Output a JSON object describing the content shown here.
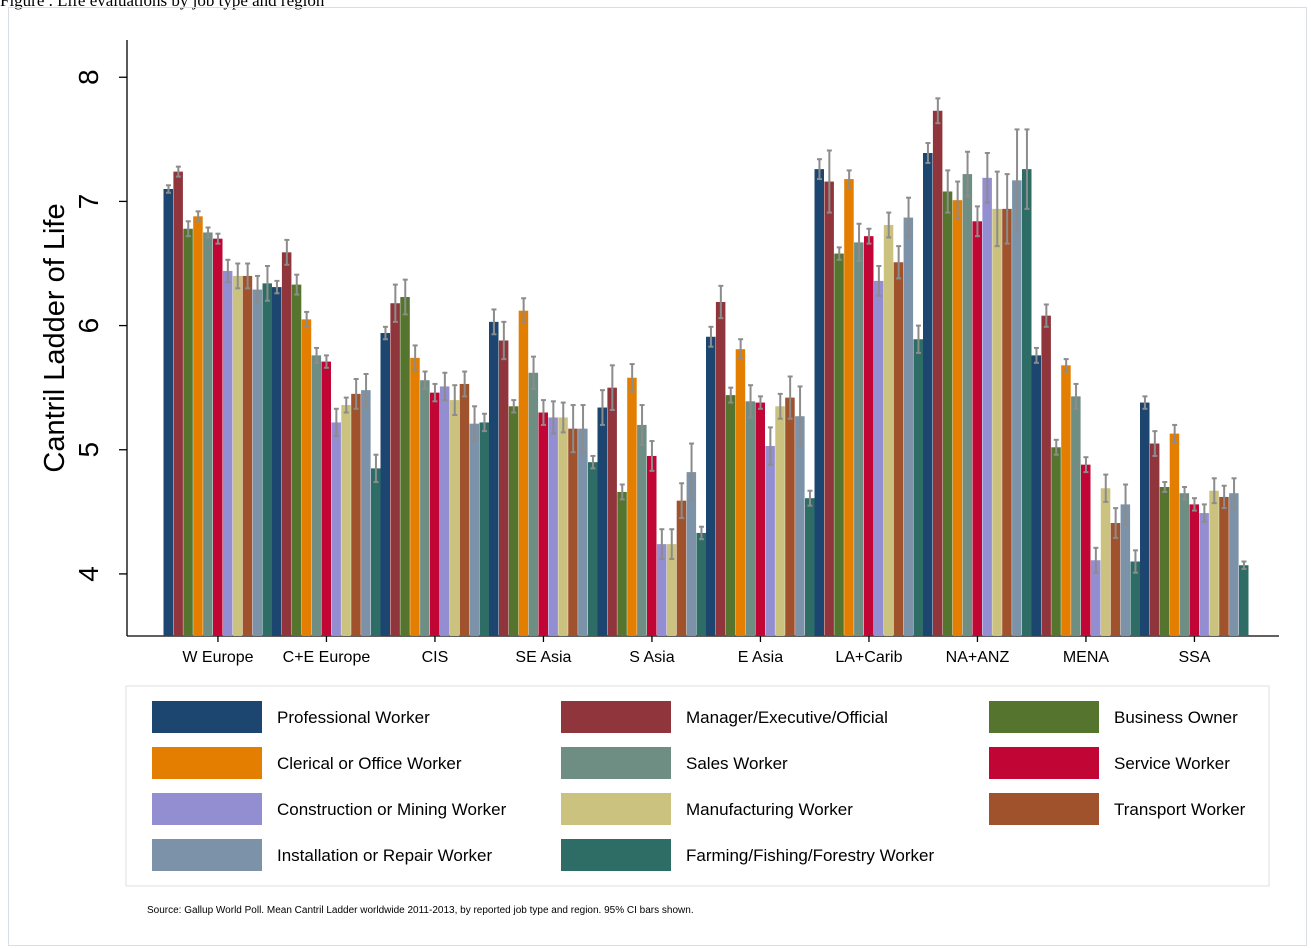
{
  "top_caption": "Figure  . Life evaluations by job type and region",
  "source_note": "Source: Gallup World Poll. Mean Cantril Ladder worldwide 2011-2013, by reported job type and region. 95% CI bars shown.",
  "chart_data": {
    "type": "bar",
    "ylabel": "Cantril Ladder of Life",
    "xlabel": "",
    "ylim": [
      3.5,
      8.3
    ],
    "yticks": [
      4,
      5,
      6,
      7,
      8
    ],
    "error_bars": "95% CI",
    "grid": false,
    "legend_position": "bottom",
    "categories": [
      "W Europe",
      "C+E Europe",
      "CIS",
      "SE Asia",
      "S Asia",
      "E Asia",
      "LA+Carib",
      "NA+ANZ",
      "MENA",
      "SSA"
    ],
    "series": [
      {
        "name": "Professional Worker",
        "color": "#1c4670",
        "values": [
          7.1,
          6.31,
          5.94,
          6.03,
          5.34,
          5.91,
          7.26,
          7.39,
          5.76,
          5.38
        ],
        "ci": [
          0.03,
          0.05,
          0.05,
          0.1,
          0.14,
          0.08,
          0.08,
          0.08,
          0.06,
          0.05
        ]
      },
      {
        "name": "Manager/Executive/Official",
        "color": "#90353b",
        "values": [
          7.24,
          6.59,
          6.18,
          5.88,
          5.5,
          6.19,
          7.16,
          7.73,
          6.08,
          5.05
        ],
        "ci": [
          0.04,
          0.1,
          0.15,
          0.15,
          0.18,
          0.13,
          0.25,
          0.1,
          0.09,
          0.1
        ]
      },
      {
        "name": "Business Owner",
        "color": "#55752f",
        "values": [
          6.78,
          6.33,
          6.23,
          5.35,
          4.66,
          5.44,
          6.58,
          7.08,
          5.02,
          4.7
        ],
        "ci": [
          0.06,
          0.08,
          0.14,
          0.05,
          0.06,
          0.06,
          0.05,
          0.17,
          0.06,
          0.04
        ]
      },
      {
        "name": "Clerical or Office Worker",
        "color": "#e37e00",
        "values": [
          6.88,
          6.05,
          5.74,
          6.12,
          5.58,
          5.81,
          7.18,
          7.01,
          5.68,
          5.13
        ],
        "ci": [
          0.04,
          0.06,
          0.1,
          0.1,
          0.11,
          0.08,
          0.07,
          0.15,
          0.05,
          0.07
        ]
      },
      {
        "name": "Sales Worker",
        "color": "#6e8e84",
        "values": [
          6.75,
          5.76,
          5.56,
          5.62,
          5.2,
          5.39,
          6.67,
          7.22,
          5.43,
          4.65
        ],
        "ci": [
          0.04,
          0.06,
          0.07,
          0.13,
          0.16,
          0.13,
          0.15,
          0.18,
          0.1,
          0.05
        ]
      },
      {
        "name": "Service Worker",
        "color": "#c10534",
        "values": [
          6.7,
          5.71,
          5.46,
          5.3,
          4.95,
          5.38,
          6.72,
          6.84,
          4.88,
          4.56
        ],
        "ci": [
          0.04,
          0.05,
          0.07,
          0.1,
          0.12,
          0.05,
          0.06,
          0.12,
          0.06,
          0.05
        ]
      },
      {
        "name": "Construction or Mining Worker",
        "color": "#938dd2",
        "values": [
          6.44,
          5.22,
          5.51,
          5.26,
          4.24,
          5.03,
          6.36,
          7.19,
          4.11,
          4.49
        ],
        "ci": [
          0.09,
          0.11,
          0.11,
          0.13,
          0.12,
          0.15,
          0.12,
          0.2,
          0.1,
          0.07
        ]
      },
      {
        "name": "Manufacturing Worker",
        "color": "#cac27e",
        "values": [
          6.4,
          5.36,
          5.4,
          5.26,
          4.24,
          5.35,
          6.81,
          6.94,
          4.69,
          4.67
        ],
        "ci": [
          0.1,
          0.06,
          0.12,
          0.12,
          0.12,
          0.1,
          0.1,
          0.3,
          0.11,
          0.1
        ]
      },
      {
        "name": "Transport Worker",
        "color": "#a0522d",
        "values": [
          6.4,
          5.45,
          5.53,
          5.17,
          4.59,
          5.42,
          6.51,
          6.94,
          4.41,
          4.62
        ],
        "ci": [
          0.1,
          0.12,
          0.1,
          0.19,
          0.14,
          0.17,
          0.13,
          0.28,
          0.12,
          0.09
        ]
      },
      {
        "name": "Installation or Repair Worker",
        "color": "#7b92a8",
        "values": [
          6.29,
          5.48,
          5.21,
          5.17,
          4.82,
          5.27,
          6.87,
          7.17,
          4.56,
          4.65
        ],
        "ci": [
          0.11,
          0.13,
          0.14,
          0.19,
          0.23,
          0.24,
          0.16,
          0.41,
          0.16,
          0.12
        ]
      },
      {
        "name": "Farming/Fishing/Forestry Worker",
        "color": "#2d6d66",
        "values": [
          6.34,
          4.85,
          5.22,
          4.9,
          4.33,
          4.61,
          5.89,
          7.26,
          4.1,
          4.07
        ],
        "ci": [
          0.14,
          0.11,
          0.07,
          0.05,
          0.05,
          0.06,
          0.11,
          0.32,
          0.09,
          0.03
        ]
      }
    ]
  }
}
